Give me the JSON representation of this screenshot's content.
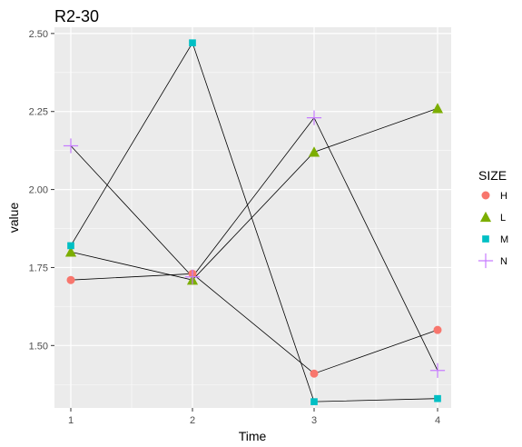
{
  "chart_data": {
    "type": "line",
    "title": "R2-30",
    "xlabel": "Time",
    "ylabel": "value",
    "categories": [
      "1",
      "2",
      "3",
      "4"
    ],
    "ylim": [
      1.3,
      2.52
    ],
    "yticks": [
      "1.50",
      "1.75",
      "2.00",
      "2.25",
      "2.50"
    ],
    "grid": true,
    "legend": {
      "title": "SIZE",
      "position": "right"
    },
    "series": [
      {
        "name": "H",
        "values": [
          1.71,
          1.73,
          1.41,
          1.55
        ],
        "color": "#F8766D",
        "marker": "circle"
      },
      {
        "name": "L",
        "values": [
          1.8,
          1.71,
          2.12,
          2.26
        ],
        "color": "#7CAE00",
        "marker": "triangle"
      },
      {
        "name": "M",
        "values": [
          1.82,
          2.47,
          1.32,
          1.33
        ],
        "color": "#00BFC4",
        "marker": "square"
      },
      {
        "name": "N",
        "values": [
          2.14,
          1.72,
          2.23,
          1.42
        ],
        "color": "#C77CFF",
        "marker": "plus"
      }
    ]
  },
  "colors": {
    "panel_background": "#EBEBEB",
    "major_grid": "#FFFFFF",
    "line": "#000000"
  }
}
